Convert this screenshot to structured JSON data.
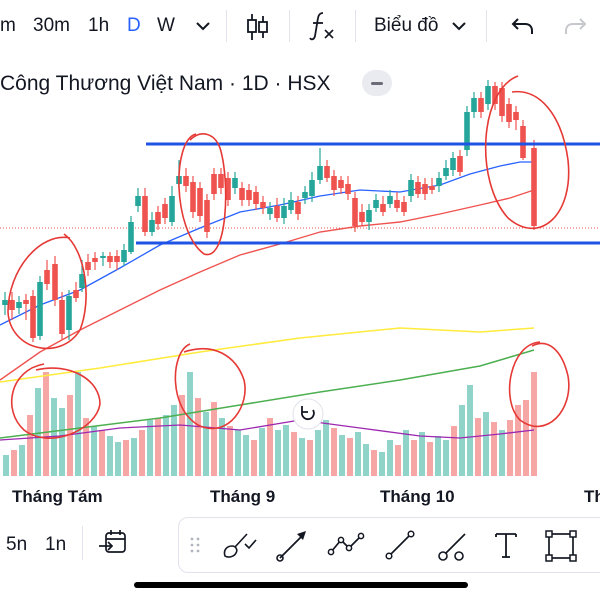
{
  "toolbar": {
    "intervals": [
      "m",
      "30m",
      "1h",
      "D",
      "W"
    ],
    "active_interval": "D",
    "chart_type_label": "Biểu đồ",
    "icons": [
      "chevron-down-icon",
      "candlestick-icon",
      "indicator-fx-icon",
      "undo-icon",
      "redo-icon"
    ]
  },
  "chart_header": {
    "title": "Công Thương Việt Nam · 1D · HSX"
  },
  "chart": {
    "x_labels": [
      "Tháng Tám",
      "Tháng 9",
      "Tháng 10",
      "Th"
    ],
    "colors": {
      "up": "#26a69a",
      "down": "#ef5350",
      "volume_up": "#8fd3c9",
      "volume_down": "#f7a6a6",
      "ma_blue": "#2962ff",
      "ma_red": "#ef5350",
      "ma_yellow": "#ffeb3b",
      "ma_green": "#4caf50",
      "volume_ma": "#9c27b0",
      "annotation": "#e53935",
      "support_resistance": "#1e53e5"
    }
  },
  "bottom_bar": {
    "range_5": "5n",
    "range_1": "1n",
    "icons": [
      "calendar-goto-icon",
      "drag-handle-icon",
      "brush-icon",
      "trend-line-icon",
      "path-icon",
      "line-icon",
      "ray-icon",
      "text-icon",
      "rectangle-icon"
    ]
  }
}
